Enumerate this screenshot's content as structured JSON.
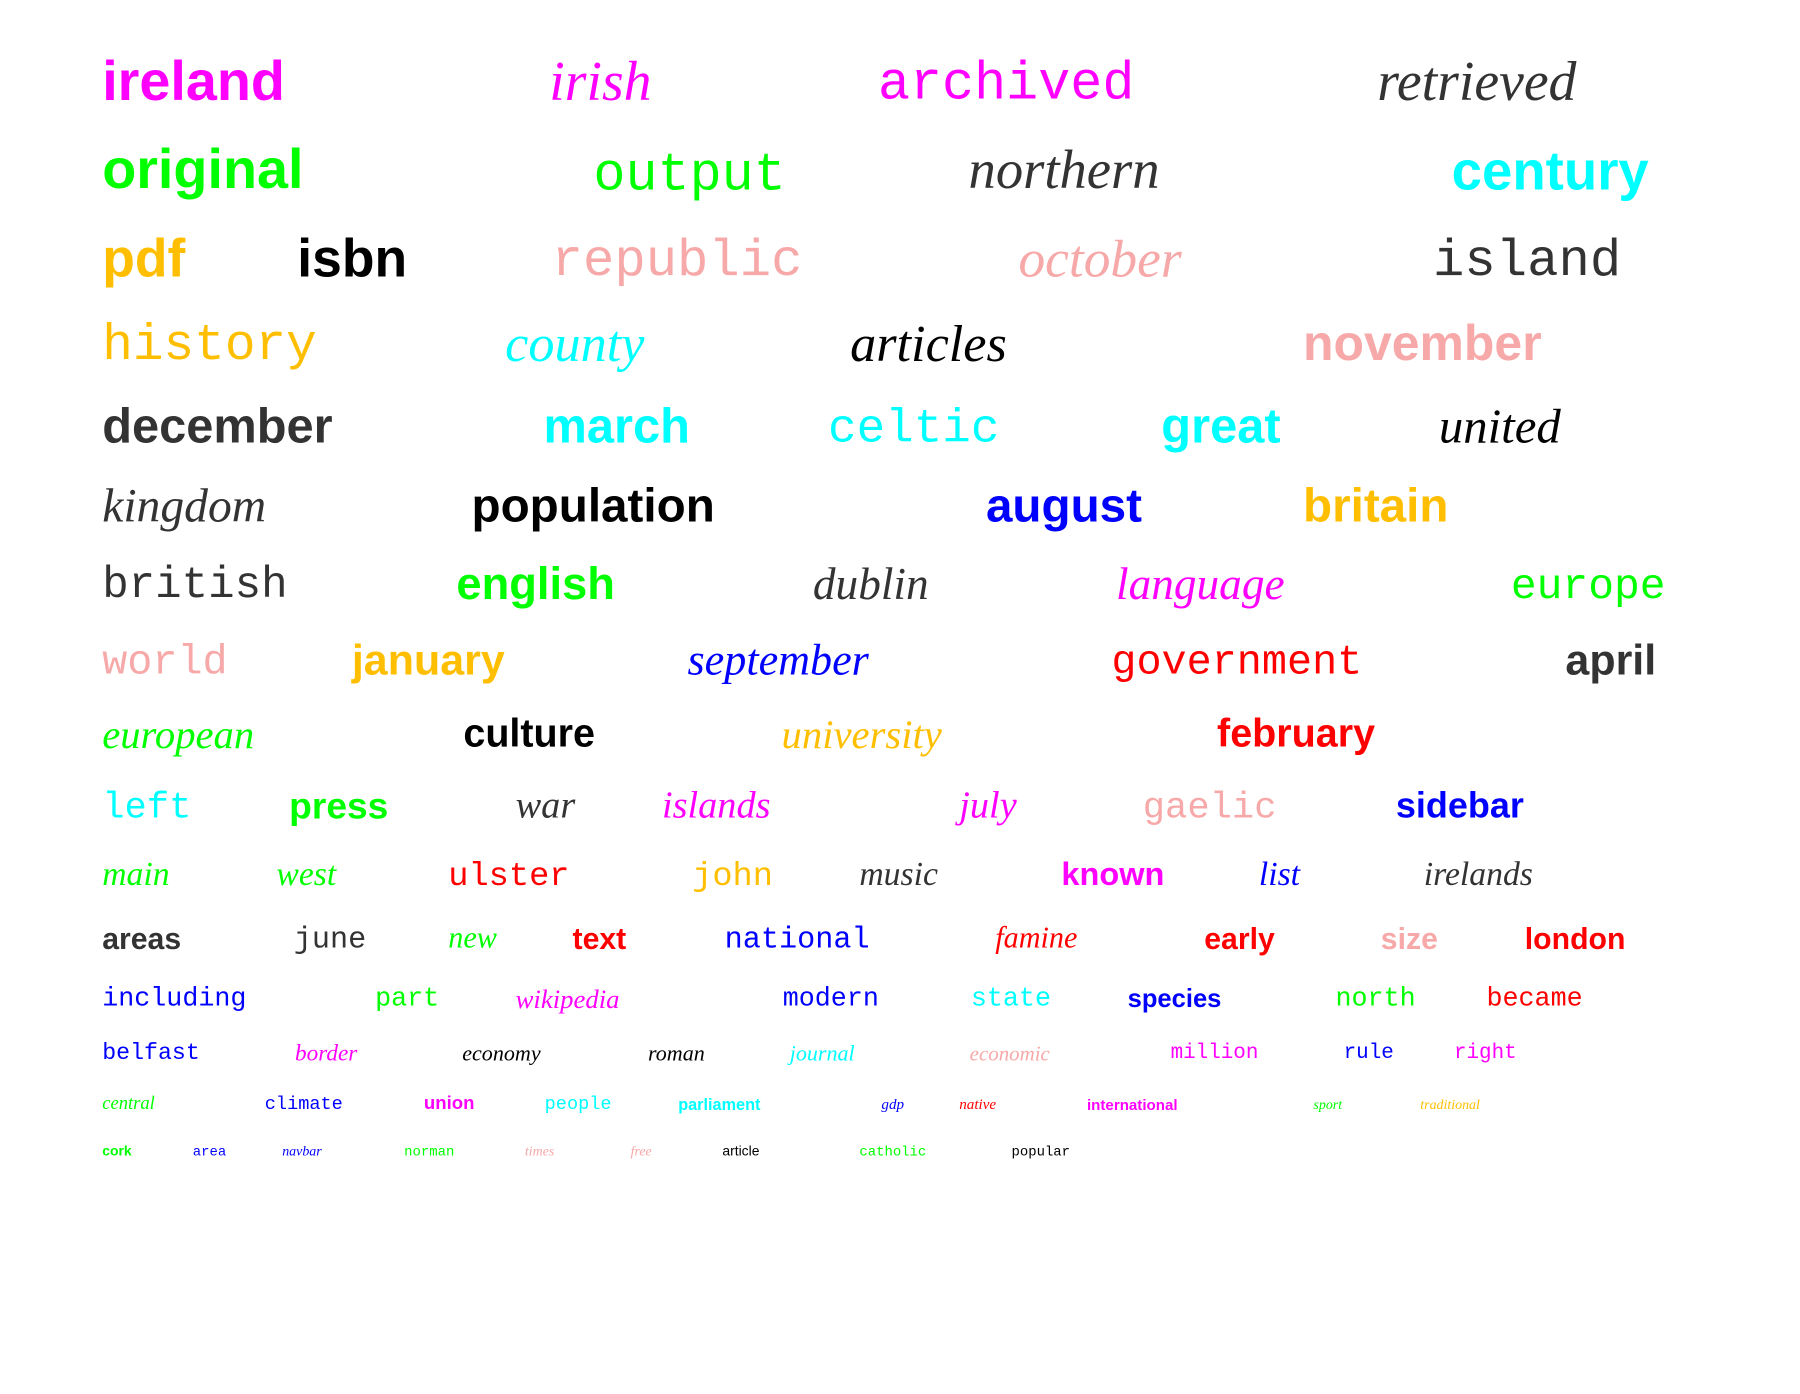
{
  "words": [
    {
      "text": "ireland",
      "color": "#ff00ff"
    },
    {
      "text": "irish",
      "color": "#ff00ff"
    },
    {
      "text": "archived",
      "color": "#ff00ff"
    },
    {
      "text": "retrieved",
      "color": "#333333"
    },
    {
      "text": "original",
      "color": "#00ff00"
    },
    {
      "text": "output",
      "color": "#00ff00"
    },
    {
      "text": "northern",
      "color": "#333333"
    },
    {
      "text": "century",
      "color": "#00ffff"
    },
    {
      "text": "pdf",
      "color": "#ffbf00"
    },
    {
      "text": "isbn",
      "color": "#000000"
    },
    {
      "text": "republic",
      "color": "#f7a8a8"
    },
    {
      "text": "october",
      "color": "#f7a8a8"
    },
    {
      "text": "island",
      "color": "#333333"
    },
    {
      "text": "history",
      "color": "#ffbf00"
    },
    {
      "text": "county",
      "color": "#00ffff"
    },
    {
      "text": "articles",
      "color": "#000000"
    },
    {
      "text": "november",
      "color": "#f7a8a8"
    },
    {
      "text": "december",
      "color": "#333333"
    },
    {
      "text": "march",
      "color": "#00ffff"
    },
    {
      "text": "celtic",
      "color": "#00ffff"
    },
    {
      "text": "great",
      "color": "#00ffff"
    },
    {
      "text": "united",
      "color": "#000000"
    },
    {
      "text": "kingdom",
      "color": "#333333"
    },
    {
      "text": "population",
      "color": "#000000"
    },
    {
      "text": "august",
      "color": "#0000ff"
    },
    {
      "text": "britain",
      "color": "#ffbf00"
    },
    {
      "text": "british",
      "color": "#333333"
    },
    {
      "text": "english",
      "color": "#00ff00"
    },
    {
      "text": "dublin",
      "color": "#333333"
    },
    {
      "text": "language",
      "color": "#ff00ff"
    },
    {
      "text": "europe",
      "color": "#00ff00"
    },
    {
      "text": "world",
      "color": "#f7a8a8"
    },
    {
      "text": "january",
      "color": "#ffbf00"
    },
    {
      "text": "september",
      "color": "#0000ff"
    },
    {
      "text": "government",
      "color": "#ff0000"
    },
    {
      "text": "april",
      "color": "#333333"
    },
    {
      "text": "european",
      "color": "#00ff00"
    },
    {
      "text": "culture",
      "color": "#000000"
    },
    {
      "text": "university",
      "color": "#ffbf00"
    },
    {
      "text": "february",
      "color": "#ff0000"
    },
    {
      "text": "left",
      "color": "#00ffff"
    },
    {
      "text": "press",
      "color": "#00ff00"
    },
    {
      "text": "war",
      "color": "#333333"
    },
    {
      "text": "islands",
      "color": "#ff00ff"
    },
    {
      "text": "july",
      "color": "#ff00ff"
    },
    {
      "text": "gaelic",
      "color": "#f7a8a8"
    },
    {
      "text": "sidebar",
      "color": "#0000ff"
    },
    {
      "text": "main",
      "color": "#00ff00"
    },
    {
      "text": "west",
      "color": "#00ff00"
    },
    {
      "text": "ulster",
      "color": "#ff0000"
    },
    {
      "text": "john",
      "color": "#ffbf00"
    },
    {
      "text": "music",
      "color": "#333333"
    },
    {
      "text": "known",
      "color": "#ff00ff"
    },
    {
      "text": "list",
      "color": "#0000ff"
    },
    {
      "text": "irelands",
      "color": "#333333"
    },
    {
      "text": "areas",
      "color": "#333333"
    },
    {
      "text": "june",
      "color": "#333333"
    },
    {
      "text": "new",
      "color": "#00ff00"
    },
    {
      "text": "text",
      "color": "#ff0000"
    },
    {
      "text": "national",
      "color": "#0000ff"
    },
    {
      "text": "famine",
      "color": "#ff0000"
    },
    {
      "text": "early",
      "color": "#ff0000"
    },
    {
      "text": "size",
      "color": "#f7a8a8"
    },
    {
      "text": "london",
      "color": "#ff0000"
    },
    {
      "text": "including",
      "color": "#0000ff"
    },
    {
      "text": "part",
      "color": "#00ff00"
    },
    {
      "text": "wikipedia",
      "color": "#ff00ff"
    },
    {
      "text": "modern",
      "color": "#0000ff"
    },
    {
      "text": "state",
      "color": "#00ffff"
    },
    {
      "text": "species",
      "color": "#0000ff"
    },
    {
      "text": "north",
      "color": "#00ff00"
    },
    {
      "text": "became",
      "color": "#ff0000"
    },
    {
      "text": "belfast",
      "color": "#0000ff"
    },
    {
      "text": "border",
      "color": "#ff00ff"
    },
    {
      "text": "economy",
      "color": "#000000"
    },
    {
      "text": "roman",
      "color": "#000000"
    },
    {
      "text": "journal",
      "color": "#00ffff"
    },
    {
      "text": "economic",
      "color": "#f7a8a8"
    },
    {
      "text": "million",
      "color": "#ff00ff"
    },
    {
      "text": "rule",
      "color": "#0000ff"
    },
    {
      "text": "right",
      "color": "#ff00ff"
    },
    {
      "text": "central",
      "color": "#00ff00"
    },
    {
      "text": "climate",
      "color": "#0000ff"
    },
    {
      "text": "union",
      "color": "#ff00ff"
    },
    {
      "text": "people",
      "color": "#00ffff"
    },
    {
      "text": "parliament",
      "color": "#00ffff"
    },
    {
      "text": "gdp",
      "color": "#0000ff"
    },
    {
      "text": "native",
      "color": "#ff0000"
    },
    {
      "text": "international",
      "color": "#ff00ff"
    },
    {
      "text": "sport",
      "color": "#00ff00"
    },
    {
      "text": "traditional",
      "color": "#ffbf00"
    },
    {
      "text": "cork",
      "color": "#00ff00"
    },
    {
      "text": "area",
      "color": "#0000ff"
    },
    {
      "text": "navbar",
      "color": "#0000ff"
    },
    {
      "text": "norman",
      "color": "#00ff00"
    },
    {
      "text": "times",
      "color": "#f7a8a8"
    },
    {
      "text": "free",
      "color": "#f7a8a8"
    },
    {
      "text": "article",
      "color": "#000000"
    },
    {
      "text": "catholic",
      "color": "#00ff00"
    },
    {
      "text": "popular",
      "color": "#000000"
    }
  ]
}
